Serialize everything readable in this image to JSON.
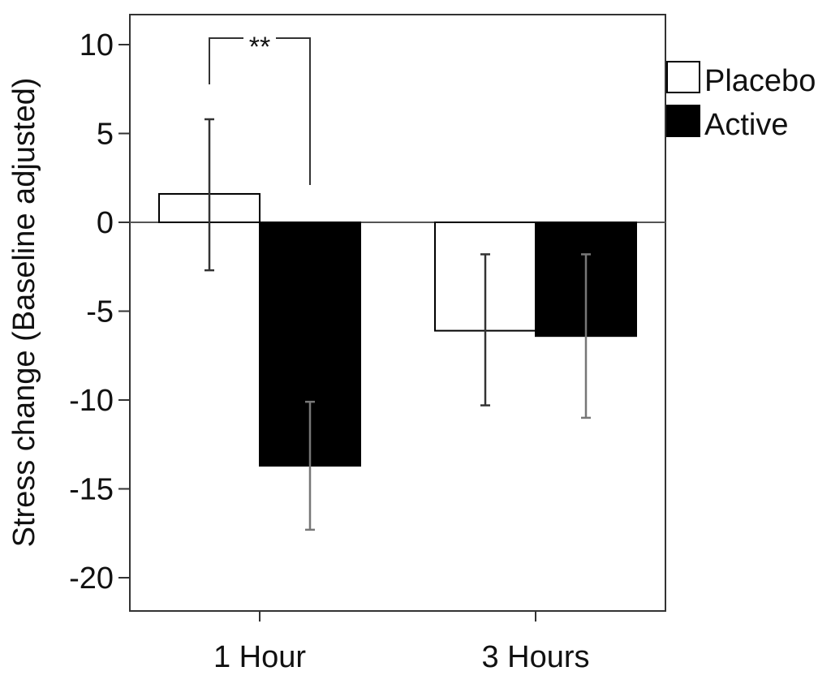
{
  "chart_data": {
    "type": "bar",
    "title": "",
    "xlabel": "",
    "ylabel": "Stress change (Baseline adjusted)",
    "ylim": [
      -21.5,
      11.5
    ],
    "yticks": [
      10,
      5,
      0,
      -5,
      -10,
      -15,
      -20
    ],
    "ytick_labels": [
      "10",
      "5",
      "0",
      "-5",
      "-10",
      "-15",
      "-20"
    ],
    "categories": [
      "1 Hour",
      "3 Hours"
    ],
    "series": [
      {
        "name": "Placebo",
        "color": "#ffffff",
        "values": [
          1.6,
          -6.1
        ],
        "error_low": [
          -2.7,
          -10.3
        ],
        "error_high": [
          5.8,
          -1.8
        ]
      },
      {
        "name": "Active",
        "color": "#000000",
        "values": [
          -13.7,
          -6.4
        ],
        "error_low": [
          -17.3,
          -11.0
        ],
        "error_high": [
          -10.1,
          -1.8
        ]
      }
    ],
    "legend_position": "top-right",
    "grid": false,
    "significance": [
      {
        "category": "1 Hour",
        "label": "**"
      }
    ]
  }
}
